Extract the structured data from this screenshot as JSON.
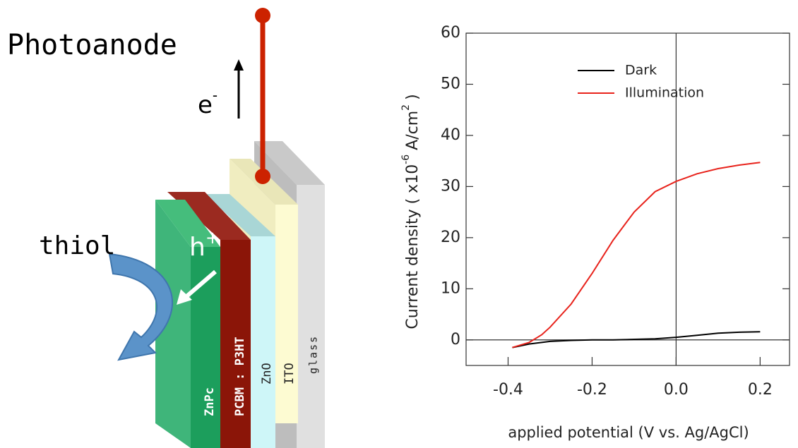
{
  "diagram": {
    "title": "Photoanode",
    "electron": "e",
    "electron_charge": "-",
    "hole": "h",
    "hole_charge": "+",
    "molecule": "thiol",
    "layers": [
      "ZnPc",
      "PCBM : P3HT",
      "ZnO",
      "ITO",
      "glass"
    ]
  },
  "chart_data": {
    "type": "line",
    "xlabel": "applied potential (V vs. Ag/AgCl)",
    "ylabel": {
      "text": "Current density ( x10",
      "exponent": "-6",
      "unit": "A/cm",
      "unit_exponent": "2",
      "close": ")"
    },
    "x": [
      -0.39,
      -0.35,
      -0.32,
      -0.3,
      -0.25,
      -0.2,
      -0.15,
      -0.1,
      -0.05,
      0,
      0.05,
      0.1,
      0.15,
      0.2
    ],
    "series": [
      {
        "name": "Dark",
        "color": "#000000",
        "values": [
          -1.5,
          -0.8,
          -0.5,
          -0.3,
          -0.1,
          0,
          0,
          0.1,
          0.2,
          0.5,
          0.9,
          1.3,
          1.5,
          1.6
        ]
      },
      {
        "name": "Illumination",
        "color": "#e8231c",
        "values": [
          -1.5,
          -0.5,
          1,
          2.5,
          7,
          13,
          19.5,
          25,
          29,
          31,
          32.5,
          33.5,
          34.2,
          34.7
        ]
      }
    ],
    "xlim": [
      -0.5,
      0.27
    ],
    "ylim": [
      -5,
      60
    ],
    "xticks": [
      -0.4,
      -0.2,
      {
        "value": 0,
        "label": "0.0"
      },
      0.2
    ],
    "yticks": [
      0,
      10,
      20,
      30,
      40,
      50,
      60
    ]
  }
}
